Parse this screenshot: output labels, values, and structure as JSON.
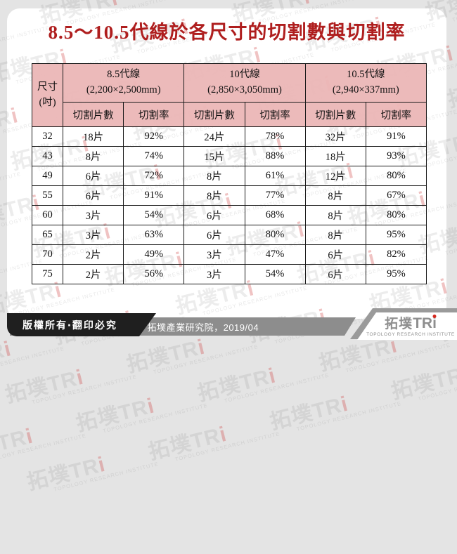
{
  "title": "8.5～10.5代線於各尺寸的切割數與切割率",
  "watermark": {
    "brand_zh": "拓墣",
    "brand_en": "TR",
    "brand_i": "i",
    "subtitle": "TOPOLOGY RESEARCH INSTITUTE"
  },
  "table": {
    "size_header_line1": "尺寸",
    "size_header_line2": "(吋)",
    "groups": [
      {
        "name": "8.5代線",
        "dims": "(2,200×2,500mm)"
      },
      {
        "name": "10代線",
        "dims": "(2,850×3,050mm)"
      },
      {
        "name": "10.5代線",
        "dims": "(2,940×337mm)"
      }
    ],
    "sub_headers": [
      "切割片數",
      "切割率"
    ],
    "rows": [
      {
        "size": "32",
        "values": [
          "18片",
          "92%",
          "24片",
          "78%",
          "32片",
          "91%"
        ]
      },
      {
        "size": "43",
        "values": [
          "8片",
          "74%",
          "15片",
          "88%",
          "18片",
          "93%"
        ]
      },
      {
        "size": "49",
        "values": [
          "6片",
          "72%",
          "8片",
          "61%",
          "12片",
          "80%"
        ]
      },
      {
        "size": "55",
        "values": [
          "6片",
          "91%",
          "8片",
          "77%",
          "8片",
          "67%"
        ]
      },
      {
        "size": "60",
        "values": [
          "3片",
          "54%",
          "6片",
          "68%",
          "8片",
          "80%"
        ]
      },
      {
        "size": "65",
        "values": [
          "3片",
          "63%",
          "6片",
          "80%",
          "8片",
          "95%"
        ]
      },
      {
        "size": "70",
        "values": [
          "2片",
          "49%",
          "3片",
          "47%",
          "6片",
          "82%"
        ]
      },
      {
        "size": "75",
        "values": [
          "2片",
          "56%",
          "3片",
          "54%",
          "6片",
          "95%"
        ]
      }
    ]
  },
  "footer": {
    "copyright": "版權所有‧翻印必究",
    "source": "Source：拓墣產業研究院，2019/04",
    "logo_zh": "拓墣",
    "logo_en": "TR",
    "logo_i": "i",
    "logo_subtitle": "TOPOLOGY RESEARCH INSTITUTE"
  },
  "colors": {
    "title_red": "#AF1E1E",
    "header_pink": "#EBB6B6",
    "page_bg": "#E4E4E4",
    "banner_black": "#1F1F1F",
    "banner_gray": "#8D8D8D",
    "logo_gray": "#8F8F8F",
    "logo_dot_red": "#D4281E",
    "table_border": "#1A1A1A"
  }
}
